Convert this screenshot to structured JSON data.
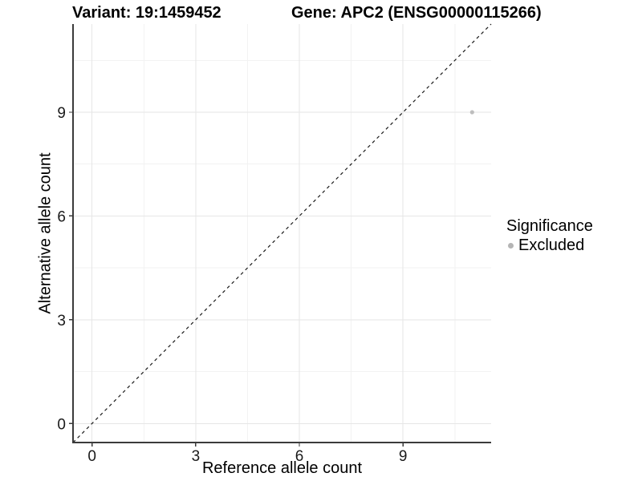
{
  "header": {
    "variant_title": "Variant: 19:1459452",
    "gene_title": "Gene: APC2 (ENSG00000115266)"
  },
  "chart_data": {
    "type": "scatter",
    "title": "Variant: 19:1459452 — Gene: APC2 (ENSG00000115266)",
    "xlabel": "Reference allele count",
    "ylabel": "Alternative allele count",
    "xlim": [
      -0.55,
      11.55
    ],
    "ylim": [
      -0.55,
      11.55
    ],
    "x_ticks": [
      0,
      3,
      6,
      9
    ],
    "y_ticks": [
      0,
      3,
      6,
      9
    ],
    "x_minor_breaks": [
      1.5,
      4.5,
      7.5,
      10.5
    ],
    "y_minor_breaks": [
      1.5,
      4.5,
      7.5,
      10.5
    ],
    "grid": true,
    "reference_line": {
      "equation": "y = x",
      "style": "dashed",
      "color": "#1a1a1a"
    },
    "series": [
      {
        "name": "Excluded",
        "color": "#bebebe",
        "points": [
          {
            "x": 11,
            "y": 9
          }
        ]
      }
    ],
    "legend": {
      "position": "right",
      "title": "Significance",
      "items": [
        {
          "label": "Excluded",
          "color": "#b5b5b5"
        }
      ]
    },
    "colors": {
      "axis_line": "#3b3b3b",
      "tick_label": "#1a1a1a",
      "grid_major": "#e6e6e6",
      "grid_minor": "#f2f2f2",
      "background": "#ffffff"
    }
  }
}
